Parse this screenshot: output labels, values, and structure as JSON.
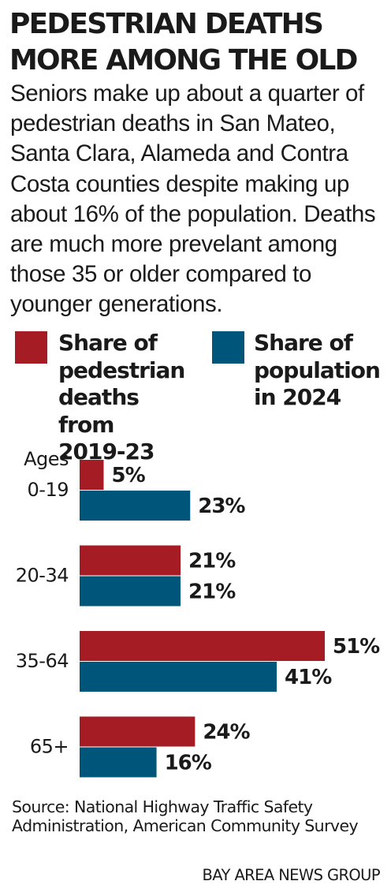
{
  "title": {
    "line1": "PEDESTRIAN DEATHS",
    "line2": "MORE AMONG THE OLD"
  },
  "subtitle": "Seniors make up about a quarter of pedestrian deaths in San Mateo, Santa Clara, Alameda and Contra Costa counties despite making up about 16% of the population. Deaths are much more prevelant among those 35 or older compared to younger generations.",
  "legend": {
    "deaths": {
      "lines": [
        "Share of",
        "pedestrian",
        "deaths from",
        "2019-23"
      ],
      "color": "#a51c24"
    },
    "population": {
      "lines": [
        "Share of",
        "population",
        "in 2024"
      ],
      "color": "#00567a"
    }
  },
  "chart_data": {
    "type": "bar",
    "orientation": "horizontal",
    "category_header": "Ages",
    "categories": [
      "0-19",
      "20-34",
      "35-64",
      "65+"
    ],
    "series": [
      {
        "name": "Share of pedestrian deaths from 2019-23",
        "values": [
          5,
          21,
          51,
          24
        ],
        "labels": [
          "5%",
          "21%",
          "51%",
          "24%"
        ],
        "color": "#a51c24"
      },
      {
        "name": "Share of population in 2024",
        "values": [
          23,
          21,
          41,
          16
        ],
        "labels": [
          "23%",
          "21%",
          "41%",
          "16%"
        ],
        "color": "#00567a"
      }
    ],
    "unit": "%",
    "xlim": [
      0,
      51
    ],
    "grid": false,
    "legend_position": "top"
  },
  "source": "Source: National Highway Traffic Safety Administration, American Community Survey",
  "credit": "BAY AREA NEWS GROUP"
}
